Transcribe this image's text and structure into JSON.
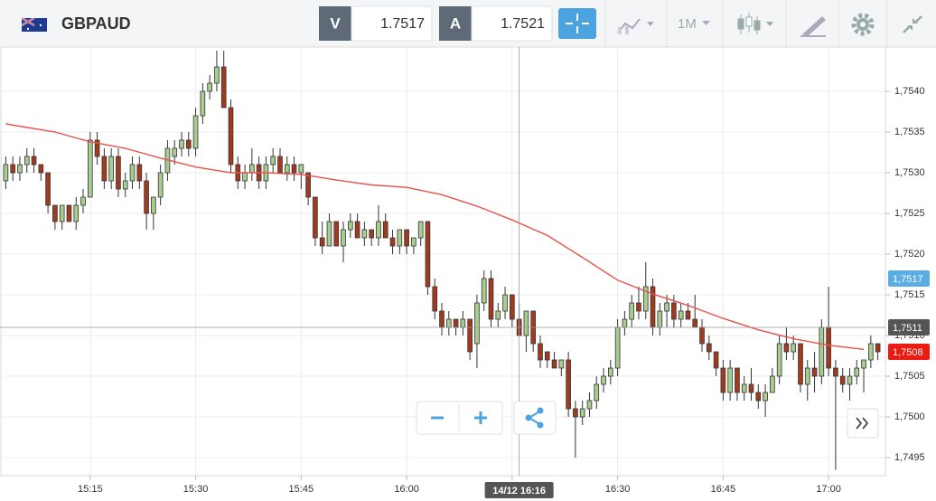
{
  "header": {
    "symbol": "GBPAUD",
    "bid_label": "V",
    "bid": 1.7517,
    "ask_label": "A",
    "ask": 1.7521,
    "timeframe": "1M"
  },
  "chart_data": {
    "type": "candlestick",
    "x": [
      "15:03",
      "15:04",
      "15:05",
      "15:06",
      "15:07",
      "15:08",
      "15:09",
      "15:10",
      "15:11",
      "15:12",
      "15:13",
      "15:14",
      "15:15",
      "15:16",
      "15:17",
      "15:18",
      "15:19",
      "15:20",
      "15:21",
      "15:22",
      "15:23",
      "15:24",
      "15:25",
      "15:26",
      "15:27",
      "15:28",
      "15:29",
      "15:30",
      "15:31",
      "15:32",
      "15:33",
      "15:34",
      "15:35",
      "15:36",
      "15:37",
      "15:38",
      "15:39",
      "15:40",
      "15:41",
      "15:42",
      "15:43",
      "15:44",
      "15:45",
      "15:46",
      "15:47",
      "15:48",
      "15:49",
      "15:50",
      "15:51",
      "15:52",
      "15:53",
      "15:54",
      "15:55",
      "15:56",
      "15:57",
      "15:58",
      "15:59",
      "16:00",
      "16:01",
      "16:02",
      "16:03",
      "16:04",
      "16:05",
      "16:06",
      "16:07",
      "16:08",
      "16:09",
      "16:10",
      "16:11",
      "16:12",
      "16:13",
      "16:14",
      "16:15",
      "16:16",
      "16:17",
      "16:18",
      "16:19",
      "16:20",
      "16:21",
      "16:22",
      "16:23",
      "16:24",
      "16:25",
      "16:26",
      "16:27",
      "16:28",
      "16:29",
      "16:30",
      "16:31",
      "16:32",
      "16:33",
      "16:34",
      "16:35",
      "16:36",
      "16:37",
      "16:38",
      "16:39",
      "16:40",
      "16:41",
      "16:42",
      "16:43",
      "16:44",
      "16:45",
      "16:46",
      "16:47",
      "16:48",
      "16:49",
      "16:50",
      "16:51",
      "16:52",
      "16:53",
      "16:54",
      "16:55",
      "16:56",
      "16:57",
      "16:58",
      "16:59",
      "17:00",
      "17:01",
      "17:02",
      "17:03",
      "17:04",
      "17:05",
      "17:06",
      "17:07"
    ],
    "open": [
      1.7529,
      1.7531,
      1.753,
      1.7531,
      1.7532,
      1.7531,
      1.753,
      1.7526,
      1.7524,
      1.7526,
      1.7524,
      1.7526,
      1.7527,
      1.7534,
      1.7532,
      1.7529,
      1.7532,
      1.7528,
      1.7529,
      1.7531,
      1.7529,
      1.7525,
      1.7527,
      1.753,
      1.7532,
      1.7533,
      1.7534,
      1.7533,
      1.7537,
      1.754,
      1.7541,
      1.7543,
      1.7538,
      1.7531,
      1.7529,
      1.753,
      1.7531,
      1.7529,
      1.7531,
      1.7532,
      1.753,
      1.7531,
      1.753,
      1.753,
      1.7527,
      1.7522,
      1.7521,
      1.7524,
      1.7521,
      1.7523,
      1.7524,
      1.7522,
      1.7523,
      1.7522,
      1.7524,
      1.7522,
      1.7521,
      1.7523,
      1.7521,
      1.7522,
      1.7524,
      1.7516,
      1.7513,
      1.7511,
      1.7512,
      1.7511,
      1.7512,
      1.7509,
      1.7514,
      1.7517,
      1.7512,
      1.7513,
      1.7515,
      1.7512,
      1.751,
      1.7513,
      1.7509,
      1.7508,
      1.7507,
      1.7506,
      1.7507,
      1.7501,
      1.75,
      1.7501,
      1.7502,
      1.7504,
      1.7505,
      1.7506,
      1.7511,
      1.7512,
      1.7514,
      1.7513,
      1.7516,
      1.7511,
      1.7513,
      1.7514,
      1.7512,
      1.7513,
      1.7512,
      1.7511,
      1.7509,
      1.7508,
      1.7506,
      1.7503,
      1.7506,
      1.7503,
      1.7504,
      1.7503,
      1.7502,
      1.7503,
      1.7505,
      1.7509,
      1.7508,
      1.7509,
      1.7504,
      1.7506,
      1.7505,
      1.7511,
      1.7506,
      1.7505,
      1.7504,
      1.7505,
      1.7506,
      1.7507,
      1.7509
    ],
    "high": [
      1.7532,
      1.7532,
      1.7532,
      1.7533,
      1.7533,
      1.7531,
      1.753,
      1.7526,
      1.7526,
      1.7526,
      1.7527,
      1.7528,
      1.7535,
      1.7535,
      1.7533,
      1.7533,
      1.7533,
      1.753,
      1.7532,
      1.7532,
      1.753,
      1.7527,
      1.7531,
      1.7534,
      1.7534,
      1.7535,
      1.7535,
      1.7538,
      1.7541,
      1.7542,
      1.7545,
      1.7545,
      1.7539,
      1.7532,
      1.7531,
      1.7533,
      1.7532,
      1.7532,
      1.7533,
      1.7533,
      1.7532,
      1.7532,
      1.7531,
      1.753,
      1.7527,
      1.7524,
      1.7525,
      1.7524,
      1.7524,
      1.7525,
      1.7525,
      1.7524,
      1.7523,
      1.7526,
      1.7525,
      1.7523,
      1.7523,
      1.7523,
      1.7522,
      1.7524,
      1.7524,
      1.7517,
      1.7514,
      1.7513,
      1.7512,
      1.7513,
      1.7512,
      1.7515,
      1.7518,
      1.7518,
      1.7514,
      1.7516,
      1.7515,
      1.7514,
      1.7513,
      1.7513,
      1.751,
      1.7508,
      1.7508,
      1.7507,
      1.7508,
      1.7502,
      1.7502,
      1.7503,
      1.7505,
      1.7506,
      1.7507,
      1.7512,
      1.7513,
      1.7515,
      1.7516,
      1.7519,
      1.7517,
      1.7514,
      1.7515,
      1.7515,
      1.7514,
      1.7514,
      1.7515,
      1.7512,
      1.751,
      1.7508,
      1.7507,
      1.7507,
      1.7506,
      1.7505,
      1.7506,
      1.7504,
      1.7504,
      1.7506,
      1.751,
      1.7511,
      1.751,
      1.7509,
      1.7507,
      1.7508,
      1.7512,
      1.7516,
      1.7507,
      1.7506,
      1.7506,
      1.7507,
      1.7507,
      1.751,
      1.7509
    ],
    "low": [
      1.7528,
      1.7529,
      1.7529,
      1.753,
      1.753,
      1.7529,
      1.7525,
      1.7523,
      1.7523,
      1.7524,
      1.7523,
      1.7525,
      1.7527,
      1.7531,
      1.7528,
      1.7528,
      1.7527,
      1.7527,
      1.7528,
      1.7528,
      1.7523,
      1.7523,
      1.7526,
      1.7529,
      1.7531,
      1.7532,
      1.7532,
      1.7532,
      1.7536,
      1.7539,
      1.754,
      1.7538,
      1.753,
      1.7528,
      1.7528,
      1.7529,
      1.7528,
      1.7528,
      1.753,
      1.753,
      1.7529,
      1.7529,
      1.7528,
      1.7526,
      1.7521,
      1.752,
      1.7521,
      1.7521,
      1.7519,
      1.7522,
      1.7522,
      1.7521,
      1.7521,
      1.7521,
      1.7522,
      1.752,
      1.752,
      1.752,
      1.752,
      1.7521,
      1.7515,
      1.7512,
      1.751,
      1.751,
      1.751,
      1.751,
      1.7507,
      1.7506,
      1.7513,
      1.7511,
      1.7511,
      1.7512,
      1.7511,
      1.751,
      1.7508,
      1.7508,
      1.7506,
      1.7506,
      1.7506,
      1.7505,
      1.75,
      1.7495,
      1.7499,
      1.75,
      1.7501,
      1.7503,
      1.7504,
      1.7505,
      1.751,
      1.7511,
      1.7512,
      1.7512,
      1.751,
      1.751,
      1.7511,
      1.7511,
      1.7511,
      1.7512,
      1.7511,
      1.7508,
      1.7507,
      1.7505,
      1.7502,
      1.7502,
      1.7502,
      1.7502,
      1.7502,
      1.7501,
      1.75,
      1.7503,
      1.7504,
      1.7507,
      1.7507,
      1.7503,
      1.7502,
      1.7503,
      1.7504,
      1.7505,
      1.74935,
      1.7503,
      1.7502,
      1.7504,
      1.7503,
      1.7506,
      1.7507
    ],
    "close": [
      1.7531,
      1.753,
      1.7531,
      1.7532,
      1.7531,
      1.753,
      1.7526,
      1.7524,
      1.7526,
      1.7524,
      1.7526,
      1.7527,
      1.7534,
      1.7532,
      1.7529,
      1.7532,
      1.7528,
      1.7529,
      1.7531,
      1.7529,
      1.7525,
      1.7527,
      1.753,
      1.7533,
      1.7533,
      1.7534,
      1.7533,
      1.7537,
      1.754,
      1.7541,
      1.7543,
      1.7538,
      1.7531,
      1.7529,
      1.753,
      1.7531,
      1.7529,
      1.7531,
      1.7532,
      1.753,
      1.7531,
      1.753,
      1.7531,
      1.7527,
      1.7522,
      1.7521,
      1.7524,
      1.7521,
      1.7523,
      1.7524,
      1.7522,
      1.7523,
      1.7522,
      1.7524,
      1.7522,
      1.7521,
      1.7523,
      1.7521,
      1.7522,
      1.7524,
      1.7516,
      1.7513,
      1.7511,
      1.7512,
      1.7511,
      1.7512,
      1.7508,
      1.7514,
      1.7517,
      1.7512,
      1.7513,
      1.7515,
      1.7512,
      1.751,
      1.7513,
      1.7509,
      1.7507,
      1.7507,
      1.7506,
      1.7507,
      1.7501,
      1.75,
      1.7501,
      1.7502,
      1.7504,
      1.7505,
      1.7506,
      1.7511,
      1.7512,
      1.7514,
      1.7513,
      1.7516,
      1.7511,
      1.7513,
      1.7514,
      1.7512,
      1.7513,
      1.7512,
      1.7511,
      1.7509,
      1.7508,
      1.7506,
      1.7503,
      1.7506,
      1.7503,
      1.7504,
      1.7503,
      1.7502,
      1.7503,
      1.7505,
      1.7509,
      1.7508,
      1.7509,
      1.7504,
      1.7506,
      1.7505,
      1.7511,
      1.7506,
      1.7505,
      1.7504,
      1.7505,
      1.7506,
      1.7507,
      1.7509,
      1.7508
    ],
    "up_color": "#a9cd8f",
    "down_color": "#a23a20",
    "edge_color": "#333333",
    "ma": {
      "color": "#e8524a",
      "x": [
        "15:03",
        "15:10",
        "15:15",
        "15:20",
        "15:25",
        "15:30",
        "15:35",
        "15:40",
        "15:45",
        "15:50",
        "15:55",
        "16:00",
        "16:05",
        "16:10",
        "16:15",
        "16:20",
        "16:25",
        "16:30",
        "16:35",
        "16:40",
        "16:45",
        "16:50",
        "16:55",
        "17:00",
        "17:05"
      ],
      "values": [
        1.7536,
        1.7535,
        1.75338,
        1.7533,
        1.75318,
        1.75307,
        1.753,
        1.753,
        1.75298,
        1.75291,
        1.75285,
        1.75282,
        1.75273,
        1.75259,
        1.75242,
        1.75223,
        1.75196,
        1.75168,
        1.75151,
        1.75137,
        1.75121,
        1.75107,
        1.75096,
        1.75088,
        1.75083
      ]
    },
    "xlim": [
      "15:03",
      "17:08"
    ],
    "xticks": [
      "15:15",
      "15:30",
      "15:45",
      "16:00",
      "16:15",
      "16:30",
      "16:45",
      "17:00"
    ],
    "ylim": [
      1.7493,
      1.7546
    ],
    "yticks": [
      {
        "value": 1.7495,
        "label": "1,7495"
      },
      {
        "value": 1.75,
        "label": "1,7500"
      },
      {
        "value": 1.7505,
        "label": "1,7505"
      },
      {
        "value": 1.751,
        "label": "1,7510"
      },
      {
        "value": 1.7515,
        "label": "1,7515"
      },
      {
        "value": 1.752,
        "label": "1,7520"
      },
      {
        "value": 1.7525,
        "label": "1,7525"
      },
      {
        "value": 1.753,
        "label": "1,7530"
      },
      {
        "value": 1.7535,
        "label": "1,7535"
      },
      {
        "value": 1.754,
        "label": "1,7540"
      }
    ],
    "grid": true,
    "price_markers": [
      {
        "value": 1.7517,
        "label": "1,7517",
        "color": "#5aaee3"
      },
      {
        "value": 1.7508,
        "label": "1,7508",
        "color": "#ea1b10"
      }
    ],
    "crosshair": {
      "x": "16:16",
      "x_label": "14/12 16:16",
      "y": {
        "value": 1.7511,
        "label": "1,7511"
      },
      "color": "#555555"
    }
  }
}
